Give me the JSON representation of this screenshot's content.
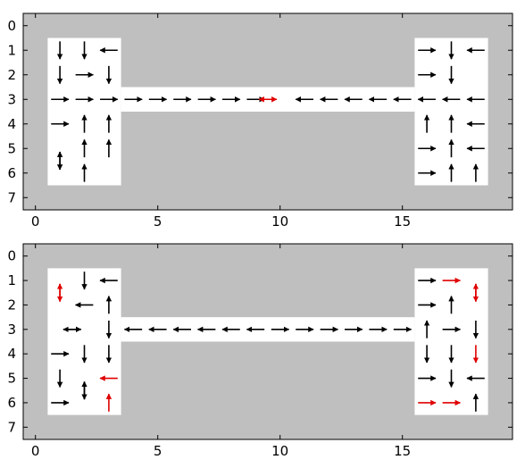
{
  "colors": {
    "wall": "#bfbfbf",
    "free": "#ffffff",
    "arrow": "#000000",
    "highlight": "#e00000",
    "frame": "#000000"
  },
  "chart_data": [
    {
      "type": "quiver",
      "title": "",
      "xlabel": "",
      "ylabel": "",
      "xlim": [
        -0.5,
        19.5
      ],
      "ylim": [
        7.5,
        -0.5
      ],
      "y_inverted": true,
      "xticks": [
        0,
        5,
        10,
        15
      ],
      "yticks": [
        0,
        1,
        2,
        3,
        4,
        5,
        6,
        7
      ],
      "free_regions": [
        {
          "x": [
            0.5,
            3.5
          ],
          "y": [
            0.5,
            6.5
          ]
        },
        {
          "x": [
            3.5,
            15.5
          ],
          "y": [
            2.5,
            3.5
          ]
        },
        {
          "x": [
            15.5,
            18.5
          ],
          "y": [
            0.5,
            6.5
          ]
        }
      ],
      "arrows": [
        {
          "x": 1,
          "y": 1,
          "dir": "down",
          "highlight": false
        },
        {
          "x": 2,
          "y": 1,
          "dir": "down",
          "highlight": false
        },
        {
          "x": 3,
          "y": 1,
          "dir": "left",
          "highlight": false
        },
        {
          "x": 1,
          "y": 2,
          "dir": "down",
          "highlight": false
        },
        {
          "x": 2,
          "y": 2,
          "dir": "right",
          "highlight": false
        },
        {
          "x": 3,
          "y": 2,
          "dir": "down",
          "highlight": false
        },
        {
          "x": 1,
          "y": 3,
          "dir": "right",
          "highlight": false
        },
        {
          "x": 2,
          "y": 3,
          "dir": "right",
          "highlight": false
        },
        {
          "x": 3,
          "y": 3,
          "dir": "right",
          "highlight": false
        },
        {
          "x": 1,
          "y": 4,
          "dir": "right",
          "highlight": false
        },
        {
          "x": 2,
          "y": 4,
          "dir": "up",
          "highlight": false
        },
        {
          "x": 3,
          "y": 4,
          "dir": "up",
          "highlight": false
        },
        {
          "x": 2,
          "y": 5,
          "dir": "up",
          "highlight": false
        },
        {
          "x": 3,
          "y": 5,
          "dir": "up",
          "highlight": false
        },
        {
          "x": 1,
          "y": 5.5,
          "dir": "up",
          "highlight": false
        },
        {
          "x": 1,
          "y": 5.5,
          "dir": "down",
          "highlight": false
        },
        {
          "x": 2,
          "y": 6,
          "dir": "up",
          "highlight": false
        },
        {
          "x": 4,
          "y": 3,
          "dir": "right",
          "highlight": false
        },
        {
          "x": 5,
          "y": 3,
          "dir": "right",
          "highlight": false
        },
        {
          "x": 6,
          "y": 3,
          "dir": "right",
          "highlight": false
        },
        {
          "x": 7,
          "y": 3,
          "dir": "right",
          "highlight": false
        },
        {
          "x": 8,
          "y": 3,
          "dir": "right",
          "highlight": false
        },
        {
          "x": 9,
          "y": 3,
          "dir": "right",
          "highlight": false
        },
        {
          "x": 9.5,
          "y": 3,
          "dir": "right",
          "highlight": true
        },
        {
          "x": 9.5,
          "y": 3,
          "dir": "left",
          "highlight": true
        },
        {
          "x": 11,
          "y": 3,
          "dir": "left",
          "highlight": false
        },
        {
          "x": 12,
          "y": 3,
          "dir": "left",
          "highlight": false
        },
        {
          "x": 13,
          "y": 3,
          "dir": "left",
          "highlight": false
        },
        {
          "x": 14,
          "y": 3,
          "dir": "left",
          "highlight": false
        },
        {
          "x": 15,
          "y": 3,
          "dir": "left",
          "highlight": false
        },
        {
          "x": 16,
          "y": 3,
          "dir": "left",
          "highlight": false
        },
        {
          "x": 17,
          "y": 3,
          "dir": "left",
          "highlight": false
        },
        {
          "x": 18,
          "y": 3,
          "dir": "left",
          "highlight": false
        },
        {
          "x": 16,
          "y": 1,
          "dir": "right",
          "highlight": false
        },
        {
          "x": 17,
          "y": 1,
          "dir": "down",
          "highlight": false
        },
        {
          "x": 18,
          "y": 1,
          "dir": "left",
          "highlight": false
        },
        {
          "x": 16,
          "y": 2,
          "dir": "right",
          "highlight": false
        },
        {
          "x": 17,
          "y": 2,
          "dir": "down",
          "highlight": false
        },
        {
          "x": 16,
          "y": 4,
          "dir": "up",
          "highlight": false
        },
        {
          "x": 17,
          "y": 4,
          "dir": "up",
          "highlight": false
        },
        {
          "x": 18,
          "y": 4,
          "dir": "left",
          "highlight": false
        },
        {
          "x": 16,
          "y": 5,
          "dir": "right",
          "highlight": false
        },
        {
          "x": 17,
          "y": 5,
          "dir": "up",
          "highlight": false
        },
        {
          "x": 18,
          "y": 5,
          "dir": "left",
          "highlight": false
        },
        {
          "x": 16,
          "y": 6,
          "dir": "right",
          "highlight": false
        },
        {
          "x": 17,
          "y": 6,
          "dir": "up",
          "highlight": false
        },
        {
          "x": 18,
          "y": 6,
          "dir": "up",
          "highlight": false
        }
      ]
    },
    {
      "type": "quiver",
      "title": "",
      "xlabel": "",
      "ylabel": "",
      "xlim": [
        -0.5,
        19.5
      ],
      "ylim": [
        7.5,
        -0.5
      ],
      "y_inverted": true,
      "xticks": [
        0,
        5,
        10,
        15
      ],
      "yticks": [
        0,
        1,
        2,
        3,
        4,
        5,
        6,
        7
      ],
      "free_regions": [
        {
          "x": [
            0.5,
            3.5
          ],
          "y": [
            0.5,
            6.5
          ]
        },
        {
          "x": [
            3.5,
            15.5
          ],
          "y": [
            2.5,
            3.5
          ]
        },
        {
          "x": [
            15.5,
            18.5
          ],
          "y": [
            0.5,
            6.5
          ]
        }
      ],
      "arrows": [
        {
          "x": 1,
          "y": 1.5,
          "dir": "up",
          "highlight": true
        },
        {
          "x": 1,
          "y": 1.5,
          "dir": "down",
          "highlight": true
        },
        {
          "x": 2,
          "y": 1,
          "dir": "down",
          "highlight": false
        },
        {
          "x": 3,
          "y": 1,
          "dir": "left",
          "highlight": false
        },
        {
          "x": 2,
          "y": 2,
          "dir": "left",
          "highlight": false
        },
        {
          "x": 3,
          "y": 2,
          "dir": "up",
          "highlight": false
        },
        {
          "x": 1.5,
          "y": 3,
          "dir": "right",
          "highlight": false
        },
        {
          "x": 1.5,
          "y": 3,
          "dir": "left",
          "highlight": false
        },
        {
          "x": 3,
          "y": 3,
          "dir": "down",
          "highlight": false
        },
        {
          "x": 1,
          "y": 4,
          "dir": "right",
          "highlight": false
        },
        {
          "x": 2,
          "y": 4,
          "dir": "down",
          "highlight": false
        },
        {
          "x": 3,
          "y": 4,
          "dir": "down",
          "highlight": false
        },
        {
          "x": 1,
          "y": 5,
          "dir": "down",
          "highlight": false
        },
        {
          "x": 2,
          "y": 5.5,
          "dir": "up",
          "highlight": false
        },
        {
          "x": 2,
          "y": 5.5,
          "dir": "down",
          "highlight": false
        },
        {
          "x": 3,
          "y": 5,
          "dir": "left",
          "highlight": true
        },
        {
          "x": 1,
          "y": 6,
          "dir": "right",
          "highlight": false
        },
        {
          "x": 3,
          "y": 6,
          "dir": "up",
          "highlight": true
        },
        {
          "x": 4,
          "y": 3,
          "dir": "left",
          "highlight": false
        },
        {
          "x": 5,
          "y": 3,
          "dir": "left",
          "highlight": false
        },
        {
          "x": 6,
          "y": 3,
          "dir": "left",
          "highlight": false
        },
        {
          "x": 7,
          "y": 3,
          "dir": "left",
          "highlight": false
        },
        {
          "x": 8,
          "y": 3,
          "dir": "left",
          "highlight": false
        },
        {
          "x": 9,
          "y": 3,
          "dir": "left",
          "highlight": false
        },
        {
          "x": 10,
          "y": 3,
          "dir": "right",
          "highlight": false
        },
        {
          "x": 11,
          "y": 3,
          "dir": "right",
          "highlight": false
        },
        {
          "x": 12,
          "y": 3,
          "dir": "right",
          "highlight": false
        },
        {
          "x": 13,
          "y": 3,
          "dir": "right",
          "highlight": false
        },
        {
          "x": 14,
          "y": 3,
          "dir": "right",
          "highlight": false
        },
        {
          "x": 15,
          "y": 3,
          "dir": "right",
          "highlight": false
        },
        {
          "x": 16,
          "y": 3,
          "dir": "up",
          "highlight": false
        },
        {
          "x": 17,
          "y": 3,
          "dir": "right",
          "highlight": false
        },
        {
          "x": 18,
          "y": 3,
          "dir": "down",
          "highlight": false
        },
        {
          "x": 16,
          "y": 1,
          "dir": "right",
          "highlight": false
        },
        {
          "x": 17,
          "y": 1,
          "dir": "right",
          "highlight": true
        },
        {
          "x": 18,
          "y": 1.5,
          "dir": "up",
          "highlight": true
        },
        {
          "x": 18,
          "y": 1.5,
          "dir": "down",
          "highlight": true
        },
        {
          "x": 16,
          "y": 2,
          "dir": "right",
          "highlight": false
        },
        {
          "x": 17,
          "y": 2,
          "dir": "up",
          "highlight": false
        },
        {
          "x": 16,
          "y": 4,
          "dir": "down",
          "highlight": false
        },
        {
          "x": 17,
          "y": 4,
          "dir": "down",
          "highlight": false
        },
        {
          "x": 18,
          "y": 4,
          "dir": "down",
          "highlight": true
        },
        {
          "x": 16,
          "y": 5,
          "dir": "right",
          "highlight": false
        },
        {
          "x": 17,
          "y": 5,
          "dir": "down",
          "highlight": false
        },
        {
          "x": 18,
          "y": 5,
          "dir": "left",
          "highlight": false
        },
        {
          "x": 16,
          "y": 6,
          "dir": "right",
          "highlight": true
        },
        {
          "x": 17,
          "y": 6,
          "dir": "right",
          "highlight": true
        },
        {
          "x": 18,
          "y": 6,
          "dir": "up",
          "highlight": false
        }
      ]
    }
  ]
}
